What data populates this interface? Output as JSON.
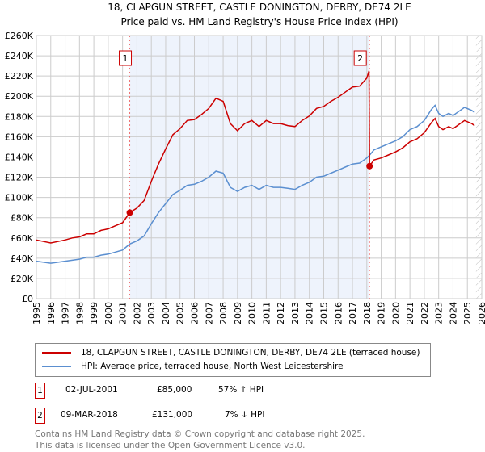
{
  "chart_data": {
    "type": "line",
    "title": "18, CLAPGUN STREET, CASTLE DONINGTON, DERBY, DE74 2LE",
    "subtitle": "Price paid vs. HM Land Registry's House Price Index (HPI)",
    "xlim": [
      1995,
      2026
    ],
    "ylim": [
      0,
      260000
    ],
    "x_ticks": [
      "1995",
      "1996",
      "1997",
      "1998",
      "1999",
      "2000",
      "2001",
      "2002",
      "2003",
      "2004",
      "2005",
      "2006",
      "2007",
      "2008",
      "2009",
      "2010",
      "2011",
      "2012",
      "2013",
      "2014",
      "2015",
      "2016",
      "2017",
      "2018",
      "2019",
      "2020",
      "2021",
      "2022",
      "2023",
      "2024",
      "2025",
      "2026"
    ],
    "y_ticks": [
      "£0",
      "£20K",
      "£40K",
      "£60K",
      "£80K",
      "£100K",
      "£120K",
      "£140K",
      "£160K",
      "£180K",
      "£200K",
      "£220K",
      "£240K",
      "£260K"
    ],
    "grid": true,
    "series": [
      {
        "name": "18, CLAPGUN STREET, CASTLE DONINGTON, DERBY, DE74 2LE (terraced house)",
        "color": "#cc0000",
        "x": [
          1995,
          1995.5,
          1996,
          1996.5,
          1997,
          1997.5,
          1998,
          1998.5,
          1999,
          1999.5,
          2000,
          2000.5,
          2001,
          2001.5,
          2002,
          2002.5,
          2003,
          2003.5,
          2004,
          2004.5,
          2005,
          2005.5,
          2006,
          2006.5,
          2007,
          2007.5,
          2008,
          2008.5,
          2009,
          2009.5,
          2010,
          2010.5,
          2011,
          2011.5,
          2012,
          2012.5,
          2013,
          2013.5,
          2014,
          2014.5,
          2015,
          2015.5,
          2016,
          2016.5,
          2017,
          2017.5,
          2018,
          2018.15,
          2018.19,
          2018.5,
          2019,
          2019.5,
          2020,
          2020.5,
          2021,
          2021.5,
          2022,
          2022.5,
          2022.75,
          2023,
          2023.3,
          2023.7,
          2024,
          2024.5,
          2024.8,
          2025.3,
          2025.5
        ],
        "y": [
          58,
          56.5,
          55,
          56.5,
          58,
          60,
          61,
          64,
          64,
          67.5,
          69,
          72,
          75,
          85,
          89.5,
          97,
          116,
          133,
          148,
          162,
          168,
          176,
          177,
          182,
          188,
          198,
          195,
          173,
          166,
          173,
          176,
          170,
          176,
          173,
          173,
          171,
          170,
          176,
          180.5,
          188,
          190,
          195,
          199,
          204,
          209,
          210,
          218,
          225,
          131,
          137,
          139,
          142,
          145,
          149,
          155,
          158,
          164,
          174,
          178,
          170,
          167,
          170,
          168,
          173,
          176,
          173,
          171
        ]
      },
      {
        "name": "HPI: Average price, terraced house, North West Leicestershire",
        "color": "#5b8fd0",
        "x": [
          1995,
          1995.5,
          1996,
          1996.5,
          1997,
          1997.5,
          1998,
          1998.5,
          1999,
          1999.5,
          2000,
          2000.5,
          2001,
          2001.5,
          2002,
          2002.5,
          2003,
          2003.5,
          2004,
          2004.5,
          2005,
          2005.5,
          2006,
          2006.5,
          2007,
          2007.5,
          2008,
          2008.5,
          2009,
          2009.5,
          2010,
          2010.5,
          2011,
          2011.5,
          2012,
          2012.5,
          2013,
          2013.5,
          2014,
          2014.5,
          2015,
          2015.5,
          2016,
          2016.5,
          2017,
          2017.5,
          2018,
          2018.2,
          2018.5,
          2019,
          2019.5,
          2020,
          2020.5,
          2021,
          2021.5,
          2022,
          2022.5,
          2022.75,
          2023,
          2023.3,
          2023.7,
          2024,
          2024.5,
          2024.8,
          2025.3,
          2025.5
        ],
        "y": [
          37,
          36,
          35,
          36,
          37,
          38,
          39,
          41,
          41,
          43,
          44,
          46,
          48,
          54,
          57,
          62,
          74,
          85,
          94,
          103,
          107,
          112,
          113,
          116,
          120,
          126,
          124,
          110,
          106,
          110,
          112,
          108,
          112,
          110,
          110,
          109,
          108,
          112,
          115,
          120,
          121,
          124,
          127,
          130,
          133,
          134,
          139,
          142,
          147,
          150,
          153,
          156,
          160,
          167,
          170,
          176,
          187,
          191,
          183,
          180,
          183,
          181,
          186,
          189,
          186,
          184
        ]
      }
    ],
    "y_unit": "thousands GBP",
    "sales": [
      {
        "label": "1",
        "date": "02-JUL-2001",
        "x": 2001.5,
        "price": "£85,000",
        "value": 85,
        "hpi": "57% ↑ HPI"
      },
      {
        "label": "2",
        "date": "09-MAR-2018",
        "x": 2018.19,
        "price": "£131,000",
        "value": 131,
        "hpi": "7% ↓ HPI"
      }
    ],
    "shaded_range": [
      2001.5,
      2018.19
    ],
    "forecast_from": 2025.6
  },
  "footer": [
    "Contains HM Land Registry data © Crown copyright and database right 2025.",
    "This data is licensed under the Open Government Licence v3.0."
  ]
}
